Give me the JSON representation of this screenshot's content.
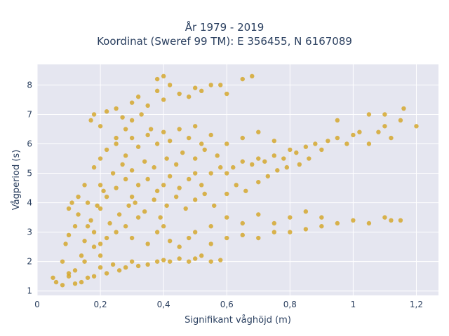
{
  "chart_data": {
    "type": "scatter",
    "title": "År 1979 - 2019",
    "subtitle": "Koordinat (Sweref 99 TM): E 356455, N 6167089",
    "xlabel": "Signifikant våghöjd (m)",
    "ylabel": "Vågperiod (s)",
    "xlim": [
      0,
      1.27
    ],
    "ylim": [
      0.85,
      8.7
    ],
    "x_ticks": [
      0,
      0.2,
      0.4,
      0.6,
      0.8,
      1,
      1.2
    ],
    "x_tick_labels": [
      "0",
      "0,2",
      "0,4",
      "0,6",
      "0,8",
      "1",
      "1,2"
    ],
    "y_ticks": [
      1,
      2,
      3,
      4,
      5,
      6,
      7,
      8
    ],
    "y_tick_labels": [
      "1",
      "2",
      "3",
      "4",
      "5",
      "6",
      "7",
      "8"
    ],
    "grid": true,
    "marker_color": "#D4A21C",
    "background_color": "#E5E6F0",
    "series": [
      {
        "points": [
          [
            0.05,
            1.45
          ],
          [
            0.06,
            1.3
          ],
          [
            0.08,
            1.2
          ],
          [
            0.1,
            1.5
          ],
          [
            0.12,
            1.25
          ],
          [
            0.14,
            1.3
          ],
          [
            0.16,
            1.45
          ],
          [
            0.18,
            1.5
          ],
          [
            0.1,
            1.6
          ],
          [
            0.12,
            1.7
          ],
          [
            0.15,
            2.0
          ],
          [
            0.08,
            2.0
          ],
          [
            0.09,
            2.6
          ],
          [
            0.1,
            2.9
          ],
          [
            0.12,
            3.2
          ],
          [
            0.1,
            3.8
          ],
          [
            0.11,
            4.0
          ],
          [
            0.13,
            4.2
          ],
          [
            0.15,
            4.6
          ],
          [
            0.16,
            4.0
          ],
          [
            0.17,
            3.4
          ],
          [
            0.18,
            3.0
          ],
          [
            0.18,
            2.5
          ],
          [
            0.2,
            2.2
          ],
          [
            0.2,
            1.8
          ],
          [
            0.22,
            1.6
          ],
          [
            0.24,
            1.9
          ],
          [
            0.26,
            1.7
          ],
          [
            0.28,
            1.8
          ],
          [
            0.3,
            2.0
          ],
          [
            0.32,
            1.85
          ],
          [
            0.35,
            1.9
          ],
          [
            0.38,
            2.0
          ],
          [
            0.4,
            2.05
          ],
          [
            0.42,
            2.0
          ],
          [
            0.45,
            2.1
          ],
          [
            0.48,
            2.0
          ],
          [
            0.5,
            2.1
          ],
          [
            0.52,
            2.2
          ],
          [
            0.55,
            2.0
          ],
          [
            0.58,
            2.05
          ],
          [
            0.2,
            2.6
          ],
          [
            0.22,
            2.8
          ],
          [
            0.25,
            3.0
          ],
          [
            0.28,
            3.2
          ],
          [
            0.3,
            2.8
          ],
          [
            0.32,
            3.5
          ],
          [
            0.35,
            2.6
          ],
          [
            0.38,
            3.0
          ],
          [
            0.4,
            3.2
          ],
          [
            0.42,
            2.7
          ],
          [
            0.45,
            2.5
          ],
          [
            0.48,
            2.8
          ],
          [
            0.5,
            3.0
          ],
          [
            0.55,
            2.6
          ],
          [
            0.6,
            2.8
          ],
          [
            0.65,
            2.9
          ],
          [
            0.7,
            2.8
          ],
          [
            0.75,
            3.0
          ],
          [
            0.8,
            3.0
          ],
          [
            0.85,
            3.1
          ],
          [
            0.9,
            3.2
          ],
          [
            0.95,
            3.3
          ],
          [
            1.0,
            3.4
          ],
          [
            1.05,
            3.3
          ],
          [
            1.1,
            3.5
          ],
          [
            1.12,
            3.4
          ],
          [
            1.15,
            3.4
          ],
          [
            0.55,
            3.2
          ],
          [
            0.6,
            3.5
          ],
          [
            0.65,
            3.3
          ],
          [
            0.7,
            3.6
          ],
          [
            0.75,
            3.3
          ],
          [
            0.8,
            3.5
          ],
          [
            0.85,
            3.7
          ],
          [
            0.9,
            3.5
          ],
          [
            0.2,
            3.8
          ],
          [
            0.22,
            4.2
          ],
          [
            0.25,
            4.5
          ],
          [
            0.28,
            4.8
          ],
          [
            0.3,
            4.2
          ],
          [
            0.32,
            4.6
          ],
          [
            0.35,
            4.8
          ],
          [
            0.38,
            4.4
          ],
          [
            0.4,
            4.6
          ],
          [
            0.42,
            4.9
          ],
          [
            0.45,
            4.5
          ],
          [
            0.48,
            4.8
          ],
          [
            0.5,
            5.0
          ],
          [
            0.52,
            4.6
          ],
          [
            0.55,
            5.0
          ],
          [
            0.58,
            5.2
          ],
          [
            0.6,
            5.0
          ],
          [
            0.62,
            5.2
          ],
          [
            0.65,
            5.4
          ],
          [
            0.68,
            5.3
          ],
          [
            0.7,
            5.5
          ],
          [
            0.72,
            5.4
          ],
          [
            0.75,
            5.6
          ],
          [
            0.78,
            5.5
          ],
          [
            0.8,
            5.8
          ],
          [
            0.82,
            5.7
          ],
          [
            0.85,
            5.9
          ],
          [
            0.88,
            6.0
          ],
          [
            0.9,
            5.8
          ],
          [
            0.92,
            6.1
          ],
          [
            0.95,
            6.2
          ],
          [
            0.98,
            6.0
          ],
          [
            1.0,
            6.3
          ],
          [
            1.02,
            6.4
          ],
          [
            1.05,
            6.0
          ],
          [
            1.08,
            6.4
          ],
          [
            1.1,
            6.6
          ],
          [
            1.12,
            6.2
          ],
          [
            1.15,
            6.8
          ],
          [
            1.16,
            7.2
          ],
          [
            1.1,
            7.0
          ],
          [
            1.05,
            7.0
          ],
          [
            1.2,
            6.6
          ],
          [
            0.95,
            6.8
          ],
          [
            0.18,
            5.2
          ],
          [
            0.2,
            5.5
          ],
          [
            0.22,
            5.8
          ],
          [
            0.25,
            6.0
          ],
          [
            0.28,
            5.6
          ],
          [
            0.3,
            6.2
          ],
          [
            0.32,
            5.9
          ],
          [
            0.35,
            6.3
          ],
          [
            0.38,
            6.0
          ],
          [
            0.4,
            6.4
          ],
          [
            0.42,
            6.1
          ],
          [
            0.45,
            6.5
          ],
          [
            0.48,
            6.2
          ],
          [
            0.5,
            6.6
          ],
          [
            0.52,
            6.0
          ],
          [
            0.55,
            6.3
          ],
          [
            0.6,
            6.0
          ],
          [
            0.65,
            6.2
          ],
          [
            0.7,
            6.4
          ],
          [
            0.75,
            6.1
          ],
          [
            0.17,
            6.8
          ],
          [
            0.18,
            7.0
          ],
          [
            0.2,
            6.6
          ],
          [
            0.22,
            7.1
          ],
          [
            0.25,
            7.2
          ],
          [
            0.27,
            6.9
          ],
          [
            0.3,
            7.4
          ],
          [
            0.32,
            7.6
          ],
          [
            0.35,
            7.3
          ],
          [
            0.38,
            7.8
          ],
          [
            0.4,
            7.5
          ],
          [
            0.42,
            8.0
          ],
          [
            0.45,
            7.7
          ],
          [
            0.48,
            7.6
          ],
          [
            0.5,
            7.9
          ],
          [
            0.52,
            7.8
          ],
          [
            0.55,
            8.0
          ],
          [
            0.58,
            8.0
          ],
          [
            0.6,
            7.7
          ],
          [
            0.65,
            8.2
          ],
          [
            0.68,
            8.3
          ],
          [
            0.38,
            8.2
          ],
          [
            0.4,
            8.3
          ],
          [
            0.25,
            6.2
          ],
          [
            0.28,
            6.5
          ],
          [
            0.3,
            6.8
          ],
          [
            0.33,
            7.0
          ],
          [
            0.36,
            6.5
          ],
          [
            0.14,
            2.2
          ],
          [
            0.15,
            2.7
          ],
          [
            0.16,
            3.2
          ],
          [
            0.13,
            3.6
          ],
          [
            0.19,
            3.9
          ],
          [
            0.21,
            4.4
          ],
          [
            0.23,
            3.3
          ],
          [
            0.26,
            3.6
          ],
          [
            0.29,
            3.9
          ],
          [
            0.31,
            4.0
          ],
          [
            0.34,
            3.7
          ],
          [
            0.37,
            4.1
          ],
          [
            0.39,
            3.5
          ],
          [
            0.41,
            3.9
          ],
          [
            0.44,
            4.2
          ],
          [
            0.47,
            3.8
          ],
          [
            0.5,
            4.1
          ],
          [
            0.53,
            4.3
          ],
          [
            0.56,
            3.9
          ],
          [
            0.6,
            4.3
          ],
          [
            0.63,
            4.6
          ],
          [
            0.66,
            4.4
          ],
          [
            0.7,
            4.7
          ],
          [
            0.73,
            4.9
          ],
          [
            0.76,
            5.1
          ],
          [
            0.79,
            5.2
          ],
          [
            0.83,
            5.3
          ],
          [
            0.86,
            5.5
          ],
          [
            0.2,
            4.6
          ],
          [
            0.24,
            5.0
          ],
          [
            0.27,
            5.3
          ],
          [
            0.3,
            5.1
          ],
          [
            0.34,
            5.4
          ],
          [
            0.37,
            5.2
          ],
          [
            0.41,
            5.5
          ],
          [
            0.44,
            5.3
          ],
          [
            0.46,
            5.7
          ],
          [
            0.5,
            5.5
          ],
          [
            0.53,
            5.8
          ],
          [
            0.57,
            5.6
          ]
        ]
      }
    ]
  }
}
